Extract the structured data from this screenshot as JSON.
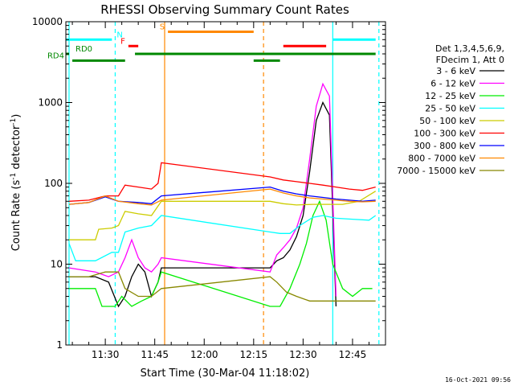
{
  "chart_data": {
    "type": "line",
    "title": "RHESSI Observing Summary Count Rates",
    "xlabel": "Start Time (30-Mar-04 11:18:02)",
    "ylabel": "Count Rate (s-1 detector-1)",
    "ylabel_main": "Count Rate (s",
    "ylabel_sup1": "-1",
    "ylabel_mid": " detector",
    "ylabel_sup2": "-1",
    "ylabel_end": ")",
    "yscale": "log",
    "xlim": [
      "11:18:02",
      "12:55"
    ],
    "ylim": [
      1,
      10000
    ],
    "x_ticks": [
      "11:30",
      "11:45",
      "12:00",
      "12:15",
      "12:30",
      "12:45"
    ],
    "y_ticks": [
      "1",
      "10",
      "100",
      "1000",
      "10000"
    ],
    "legend": {
      "placement": "right",
      "header": [
        "Det 1,3,4,5,6,9,",
        "FDecim 1, Att 0"
      ],
      "entries": [
        {
          "label": "3 - 6 keV",
          "color": "#000000"
        },
        {
          "label": "6 - 12 keV",
          "color": "#ff00ff"
        },
        {
          "label": "12 - 25 keV",
          "color": "#00ee00"
        },
        {
          "label": "25 - 50 keV",
          "color": "#00ffff"
        },
        {
          "label": "50 - 100 keV",
          "color": "#cccc00"
        },
        {
          "label": "100 - 300 keV",
          "color": "#ff0000"
        },
        {
          "label": "300 - 800 keV",
          "color": "#0000ff"
        },
        {
          "label": "800 - 7000 keV",
          "color": "#ff8800"
        },
        {
          "label": "7000 - 15000 keV",
          "color": "#888800"
        }
      ]
    },
    "series": [
      {
        "name": "3 - 6 keV",
        "color": "#000000",
        "x": [
          "11:19",
          "11:27",
          "11:31",
          "11:34",
          "11:36",
          "11:38",
          "11:40",
          "11:42",
          "11:44",
          "11:46",
          "11:47",
          "12:20",
          "12:22",
          "12:24",
          "12:26",
          "12:28",
          "12:30",
          "12:32",
          "12:34",
          "12:36",
          "12:38",
          "12:40"
        ],
        "y": [
          7,
          7,
          6,
          3,
          4,
          7,
          10,
          8,
          4,
          6,
          9,
          9,
          11,
          12,
          15,
          22,
          40,
          140,
          600,
          1000,
          700,
          3
        ]
      },
      {
        "name": "6 - 12 keV",
        "color": "#ff00ff",
        "x": [
          "11:19",
          "11:27",
          "11:31",
          "11:34",
          "11:36",
          "11:38",
          "11:40",
          "11:42",
          "11:44",
          "11:46",
          "11:47",
          "12:20",
          "12:22",
          "12:24",
          "12:26",
          "12:28",
          "12:30",
          "12:32",
          "12:34",
          "12:36",
          "12:38",
          "12:40"
        ],
        "y": [
          9,
          8,
          7,
          8,
          12,
          20,
          12,
          9,
          8,
          10,
          12,
          8,
          13,
          16,
          20,
          28,
          50,
          200,
          900,
          1700,
          1200,
          4
        ]
      },
      {
        "name": "12 - 25 keV",
        "color": "#00ee00",
        "x": [
          "11:19",
          "11:27",
          "11:29",
          "11:33",
          "11:35",
          "11:38",
          "11:41",
          "11:44",
          "11:46",
          "11:47",
          "12:20",
          "12:23",
          "12:26",
          "12:29",
          "12:31",
          "12:33",
          "12:35",
          "12:37",
          "12:39",
          "12:42",
          "12:45",
          "12:48",
          "12:51"
        ],
        "y": [
          5,
          5,
          3,
          3,
          4,
          3,
          3.5,
          4,
          6,
          8,
          3,
          3,
          5,
          10,
          18,
          40,
          60,
          35,
          10,
          5,
          4,
          5,
          5
        ]
      },
      {
        "name": "25 - 50 keV",
        "color": "#00ffff",
        "x": [
          "11:19",
          "11:21",
          "11:27",
          "11:32",
          "11:34",
          "11:36",
          "11:40",
          "11:44",
          "11:47",
          "12:20",
          "12:23",
          "12:26",
          "12:29",
          "12:33",
          "12:36",
          "12:40",
          "12:45",
          "12:50",
          "12:52"
        ],
        "y": [
          18,
          11,
          11,
          14,
          14,
          25,
          28,
          30,
          40,
          25,
          24,
          24,
          30,
          38,
          40,
          37,
          36,
          35,
          40
        ]
      },
      {
        "name": "50 - 100 keV",
        "color": "#cccc00",
        "x": [
          "11:19",
          "11:21",
          "11:27",
          "11:28",
          "11:32",
          "11:34",
          "11:36",
          "11:40",
          "11:44",
          "11:47",
          "12:20",
          "12:24",
          "12:28",
          "12:33",
          "12:38",
          "12:42",
          "12:47",
          "12:52"
        ],
        "y": [
          20,
          20,
          20,
          27,
          28,
          30,
          45,
          42,
          40,
          60,
          60,
          56,
          54,
          55,
          55,
          55,
          60,
          80
        ]
      },
      {
        "name": "100 - 300 keV",
        "color": "#ff0000",
        "x": [
          "11:19",
          "11:25",
          "11:30",
          "11:34",
          "11:36",
          "11:40",
          "11:44",
          "11:46",
          "11:47",
          "12:20",
          "12:24",
          "12:28",
          "12:32",
          "12:36",
          "12:40",
          "12:44",
          "12:48",
          "12:52"
        ],
        "y": [
          60,
          62,
          70,
          70,
          95,
          90,
          85,
          100,
          180,
          120,
          110,
          105,
          100,
          95,
          90,
          85,
          82,
          90
        ]
      },
      {
        "name": "300 - 800 keV",
        "color": "#0000ff",
        "x": [
          "11:19",
          "11:25",
          "11:30",
          "11:34",
          "11:40",
          "11:44",
          "11:47",
          "12:20",
          "12:24",
          "12:28",
          "12:32",
          "12:36",
          "12:40",
          "12:44",
          "12:48",
          "12:52"
        ],
        "y": [
          55,
          58,
          68,
          60,
          58,
          56,
          70,
          90,
          80,
          74,
          70,
          67,
          64,
          62,
          60,
          62
        ]
      },
      {
        "name": "800 - 7000 keV",
        "color": "#ff8800",
        "x": [
          "11:19",
          "11:25",
          "11:30",
          "11:34",
          "11:40",
          "11:44",
          "11:47",
          "12:20",
          "12:24",
          "12:28",
          "12:32",
          "12:36",
          "12:40",
          "12:44",
          "12:48",
          "12:52"
        ],
        "y": [
          55,
          58,
          70,
          60,
          56,
          54,
          62,
          85,
          76,
          70,
          66,
          64,
          62,
          60,
          59,
          60
        ]
      },
      {
        "name": "7000 - 15000 keV",
        "color": "#888800",
        "x": [
          "11:19",
          "11:25",
          "11:30",
          "11:34",
          "11:36",
          "11:40",
          "11:44",
          "11:47",
          "12:20",
          "12:22",
          "12:25",
          "12:28",
          "12:32",
          "12:36",
          "12:40",
          "12:44",
          "12:48",
          "12:52"
        ],
        "y": [
          7,
          7,
          8,
          8,
          5,
          4,
          4,
          5,
          7,
          6,
          4.5,
          4,
          3.5,
          3.5,
          3.5,
          3.5,
          3.5,
          3.5
        ]
      }
    ],
    "flag_bars": [
      {
        "label": "N",
        "color": "#00ffff",
        "y": 6000,
        "segments": [
          [
            "11:18",
            "11:32"
          ],
          [
            "12:39",
            "12:52"
          ]
        ]
      },
      {
        "label": "F",
        "color": "#ff0000",
        "y": 5000,
        "segments": [
          [
            "11:37",
            "11:40"
          ],
          [
            "12:24",
            "12:37"
          ]
        ]
      },
      {
        "label": "S",
        "color": "#ff8800",
        "y": 7500,
        "segments": [
          [
            "11:49",
            "12:15"
          ]
        ]
      },
      {
        "label": "RD0",
        "color": "#008800",
        "y": 4000,
        "segments": [
          [
            "11:18",
            "11:19"
          ],
          [
            "11:39",
            "12:52"
          ]
        ]
      },
      {
        "label": "RD4",
        "color": "#008800",
        "y": 3300,
        "segments": [
          [
            "11:20",
            "11:36"
          ],
          [
            "12:15",
            "12:23"
          ]
        ]
      }
    ],
    "vertical_lines": [
      {
        "x": "11:19",
        "color": "#00ffff",
        "style": "solid"
      },
      {
        "x": "11:33",
        "color": "#00ffff",
        "style": "dashed"
      },
      {
        "x": "11:48",
        "color": "#ff8800",
        "style": "solid"
      },
      {
        "x": "12:18",
        "color": "#ff8800",
        "style": "dashed"
      },
      {
        "x": "12:39",
        "color": "#00ffff",
        "style": "solid"
      },
      {
        "x": "12:53",
        "color": "#00ffff",
        "style": "dashed"
      }
    ],
    "grid": false
  },
  "footer": {
    "timestamp": "16-Oct-2021 09:56"
  }
}
